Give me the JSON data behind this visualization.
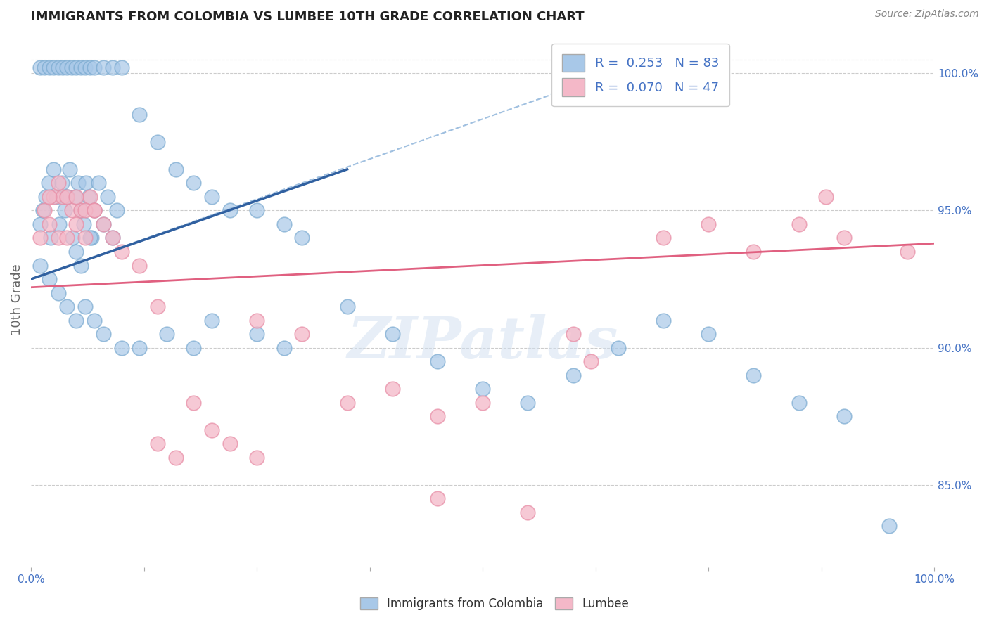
{
  "title": "IMMIGRANTS FROM COLOMBIA VS LUMBEE 10TH GRADE CORRELATION CHART",
  "source": "Source: ZipAtlas.com",
  "ylabel": "10th Grade",
  "xlim": [
    0.0,
    100.0
  ],
  "ylim": [
    82.0,
    101.5
  ],
  "right_yticks": [
    85.0,
    90.0,
    95.0,
    100.0
  ],
  "right_yticklabels": [
    "85.0%",
    "90.0%",
    "95.0%",
    "100.0%"
  ],
  "blue_color": "#A8C8E8",
  "pink_color": "#F4B8C8",
  "blue_edge_color": "#7AAAD0",
  "pink_edge_color": "#E890A8",
  "blue_line_color": "#3060A0",
  "pink_line_color": "#E06080",
  "blue_dashed_color": "#A0C0E0",
  "legend_R_blue": "0.253",
  "legend_N_blue": "83",
  "legend_R_pink": "0.070",
  "legend_N_pink": "47",
  "blue_scatter_x": [
    1.0,
    1.3,
    1.6,
    1.9,
    2.2,
    2.5,
    2.8,
    3.1,
    3.4,
    3.7,
    4.0,
    4.3,
    4.6,
    4.9,
    5.2,
    5.5,
    5.8,
    6.1,
    6.4,
    6.7,
    7.0,
    7.5,
    8.0,
    8.5,
    9.0,
    9.5,
    1.0,
    1.5,
    2.0,
    2.5,
    3.0,
    3.5,
    4.0,
    4.5,
    5.0,
    5.5,
    6.0,
    6.5,
    7.0,
    8.0,
    9.0,
    10.0,
    12.0,
    14.0,
    16.0,
    18.0,
    20.0,
    22.0,
    25.0,
    28.0,
    30.0,
    35.0,
    40.0,
    45.0,
    50.0,
    55.0,
    60.0,
    65.0,
    70.0,
    75.0,
    80.0,
    85.0,
    90.0,
    95.0,
    1.0,
    2.0,
    3.0,
    4.0,
    5.0,
    6.0,
    7.0,
    8.0,
    10.0,
    12.0,
    15.0,
    18.0,
    20.0,
    25.0,
    28.0,
    4.0,
    5.0,
    5.5,
    6.5
  ],
  "blue_scatter_y": [
    94.5,
    95.0,
    95.5,
    96.0,
    94.0,
    96.5,
    95.5,
    94.5,
    96.0,
    95.0,
    95.5,
    96.5,
    94.0,
    95.5,
    96.0,
    95.0,
    94.5,
    96.0,
    95.5,
    94.0,
    95.0,
    96.0,
    94.5,
    95.5,
    94.0,
    95.0,
    100.2,
    100.2,
    100.2,
    100.2,
    100.2,
    100.2,
    100.2,
    100.2,
    100.2,
    100.2,
    100.2,
    100.2,
    100.2,
    100.2,
    100.2,
    100.2,
    98.5,
    97.5,
    96.5,
    96.0,
    95.5,
    95.0,
    95.0,
    94.5,
    94.0,
    91.5,
    90.5,
    89.5,
    88.5,
    88.0,
    89.0,
    90.0,
    91.0,
    90.5,
    89.0,
    88.0,
    87.5,
    83.5,
    93.0,
    92.5,
    92.0,
    91.5,
    91.0,
    91.5,
    91.0,
    90.5,
    90.0,
    90.0,
    90.5,
    90.0,
    91.0,
    90.5,
    90.0,
    95.5,
    93.5,
    93.0,
    94.0
  ],
  "pink_scatter_x": [
    1.0,
    1.5,
    2.0,
    2.5,
    3.0,
    3.5,
    4.0,
    4.5,
    5.0,
    5.5,
    6.0,
    6.5,
    7.0,
    8.0,
    9.0,
    10.0,
    12.0,
    14.0,
    16.0,
    20.0,
    22.0,
    25.0,
    30.0,
    35.0,
    40.0,
    45.0,
    50.0,
    60.0,
    62.0,
    70.0,
    75.0,
    80.0,
    85.0,
    88.0,
    90.0,
    97.0,
    2.0,
    3.0,
    4.0,
    5.0,
    6.0,
    7.0,
    14.0,
    18.0,
    25.0,
    45.0,
    55.0
  ],
  "pink_scatter_y": [
    94.0,
    95.0,
    94.5,
    95.5,
    94.0,
    95.5,
    94.0,
    95.0,
    94.5,
    95.0,
    94.0,
    95.5,
    95.0,
    94.5,
    94.0,
    93.5,
    93.0,
    86.5,
    86.0,
    87.0,
    86.5,
    86.0,
    90.5,
    88.0,
    88.5,
    87.5,
    88.0,
    90.5,
    89.5,
    94.0,
    94.5,
    93.5,
    94.5,
    95.5,
    94.0,
    93.5,
    95.5,
    96.0,
    95.5,
    95.5,
    95.0,
    95.0,
    91.5,
    88.0,
    91.0,
    84.5,
    84.0
  ],
  "background_color": "#ffffff",
  "grid_color": "#cccccc",
  "watermark_text": "ZIPatlas",
  "title_color": "#222222",
  "axis_label_color": "#666666",
  "right_axis_color": "#4472C4",
  "blue_reg_x0": 0.0,
  "blue_reg_y0": 92.5,
  "blue_reg_x1": 35.0,
  "blue_reg_y1": 96.5,
  "blue_dash_x0": 0.0,
  "blue_dash_y0": 92.5,
  "blue_dash_x1": 60.0,
  "blue_dash_y1": 99.5,
  "pink_reg_x0": 0.0,
  "pink_reg_y0": 92.2,
  "pink_reg_x1": 100.0,
  "pink_reg_y1": 93.8
}
